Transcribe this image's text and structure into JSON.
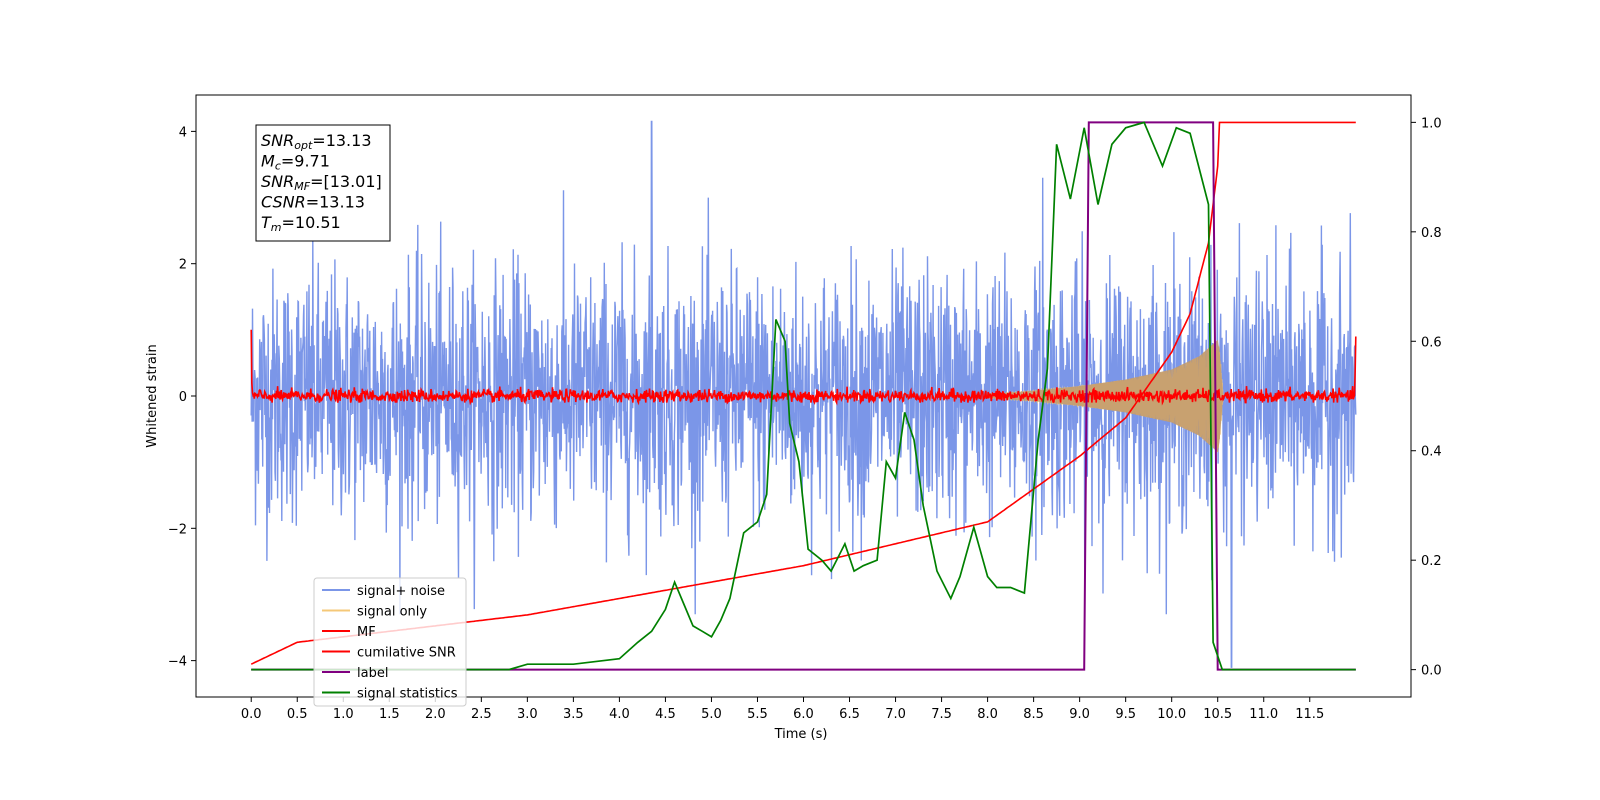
{
  "chart_data": {
    "type": "line",
    "xlabel": "Time (s)",
    "ylabel": "Whitened strain",
    "xlim": [
      -0.6,
      12.6
    ],
    "ylim": [
      -4.55,
      4.55
    ],
    "y2lim": [
      -0.05,
      1.05
    ],
    "x_ticks": [
      0.0,
      0.5,
      1.0,
      1.5,
      2.0,
      2.5,
      3.0,
      3.5,
      4.0,
      4.5,
      5.0,
      5.5,
      6.0,
      6.5,
      7.0,
      7.5,
      8.0,
      8.5,
      9.0,
      9.5,
      10.0,
      10.5,
      11.0,
      11.5
    ],
    "x_tick_labels": [
      "0.0",
      "0.5",
      "1.0",
      "1.5",
      "2.0",
      "2.5",
      "3.0",
      "3.5",
      "4.0",
      "4.5",
      "5.0",
      "5.5",
      "6.0",
      "6.5",
      "7.0",
      "7.5",
      "8.0",
      "8.5",
      "9.0",
      "9.5",
      "10.0",
      "10.5",
      "11.0",
      "11.5"
    ],
    "y_ticks": [
      -4,
      -2,
      0,
      2,
      4
    ],
    "y_tick_labels": [
      "−4",
      "−2",
      "0",
      "2",
      "4"
    ],
    "y2_ticks": [
      0.0,
      0.2,
      0.4,
      0.6,
      0.8,
      1.0
    ],
    "y2_tick_labels": [
      "0.0",
      "0.2",
      "0.4",
      "0.6",
      "0.8",
      "1.0"
    ],
    "grid": false,
    "legend_position": "lower-left",
    "info_box": {
      "position": "top-left",
      "lines": [
        {
          "base": "SNR",
          "sub": "opt",
          "value": "=13.13"
        },
        {
          "base": "M",
          "sub": "c",
          "value": "=9.71"
        },
        {
          "base": "SNR",
          "sub": "MF",
          "value": "=[13.01]"
        },
        {
          "base": "CSNR",
          "sub": "",
          "value": "=13.13"
        },
        {
          "base": "T",
          "sub": "m",
          "value": "=10.51"
        }
      ]
    },
    "series": [
      {
        "name": "signal+ noise",
        "color": "#7b96e8",
        "axis": "left",
        "kind": "noise",
        "x_range": [
          0.0,
          12.0
        ],
        "typical_band": [
          -1.8,
          1.7
        ],
        "peaks": [
          {
            "x": 4.35,
            "y": 4.15
          },
          {
            "x": 8.6,
            "y": 3.3
          },
          {
            "x": 10.65,
            "y": -4.1
          }
        ]
      },
      {
        "name": "signal only",
        "color": "#f5c878",
        "axis": "left",
        "kind": "chirp",
        "envelope": {
          "x": [
            8.0,
            8.5,
            9.0,
            9.5,
            10.0,
            10.3,
            10.5,
            10.52,
            10.56
          ],
          "amplitude": [
            0.03,
            0.08,
            0.15,
            0.25,
            0.4,
            0.6,
            0.85,
            0.7,
            0.0
          ]
        }
      },
      {
        "name": "MF",
        "color": "#ff0000",
        "axis": "left",
        "kind": "matched-filter",
        "start": 1.0,
        "end": 0.9,
        "band": [
          -0.1,
          0.15
        ]
      },
      {
        "name": "cumilative SNR",
        "color": "#ff0000",
        "axis": "right",
        "x": [
          0.0,
          0.5,
          1.0,
          2.0,
          3.0,
          4.0,
          5.0,
          6.0,
          7.0,
          8.0,
          8.5,
          9.0,
          9.5,
          10.0,
          10.2,
          10.4,
          10.5,
          10.51,
          12.0
        ],
        "y": [
          0.01,
          0.05,
          0.06,
          0.08,
          0.1,
          0.13,
          0.16,
          0.19,
          0.23,
          0.27,
          0.33,
          0.39,
          0.46,
          0.58,
          0.65,
          0.78,
          0.92,
          1.0,
          1.0
        ]
      },
      {
        "name": "label",
        "color": "#800080",
        "axis": "right",
        "x": [
          0.0,
          9.05,
          9.1,
          10.45,
          10.5,
          12.0
        ],
        "y": [
          0.0,
          0.0,
          1.0,
          1.0,
          0.0,
          0.0
        ]
      },
      {
        "name": "signal statistics",
        "color": "#008000",
        "axis": "right",
        "x": [
          0.0,
          0.5,
          1.0,
          2.0,
          2.5,
          2.8,
          3.0,
          3.5,
          4.0,
          4.2,
          4.35,
          4.5,
          4.6,
          4.7,
          4.8,
          4.9,
          5.0,
          5.1,
          5.2,
          5.35,
          5.5,
          5.6,
          5.7,
          5.8,
          5.85,
          5.95,
          6.05,
          6.2,
          6.3,
          6.45,
          6.55,
          6.65,
          6.8,
          6.9,
          7.0,
          7.1,
          7.2,
          7.3,
          7.45,
          7.6,
          7.7,
          7.85,
          8.0,
          8.1,
          8.25,
          8.4,
          8.55,
          8.65,
          8.75,
          8.9,
          9.05,
          9.2,
          9.35,
          9.5,
          9.7,
          9.9,
          10.05,
          10.2,
          10.4,
          10.45,
          10.55,
          12.0
        ],
        "y": [
          0.0,
          0.0,
          0.0,
          0.0,
          0.0,
          0.0,
          0.01,
          0.01,
          0.02,
          0.05,
          0.07,
          0.11,
          0.16,
          0.12,
          0.08,
          0.07,
          0.06,
          0.09,
          0.13,
          0.25,
          0.27,
          0.32,
          0.64,
          0.6,
          0.45,
          0.38,
          0.22,
          0.2,
          0.18,
          0.23,
          0.18,
          0.19,
          0.2,
          0.38,
          0.35,
          0.47,
          0.42,
          0.3,
          0.18,
          0.13,
          0.17,
          0.26,
          0.17,
          0.15,
          0.15,
          0.14,
          0.42,
          0.55,
          0.96,
          0.86,
          0.99,
          0.85,
          0.96,
          0.99,
          1.0,
          0.92,
          0.99,
          0.98,
          0.85,
          0.05,
          0.0,
          0.0
        ]
      }
    ]
  }
}
